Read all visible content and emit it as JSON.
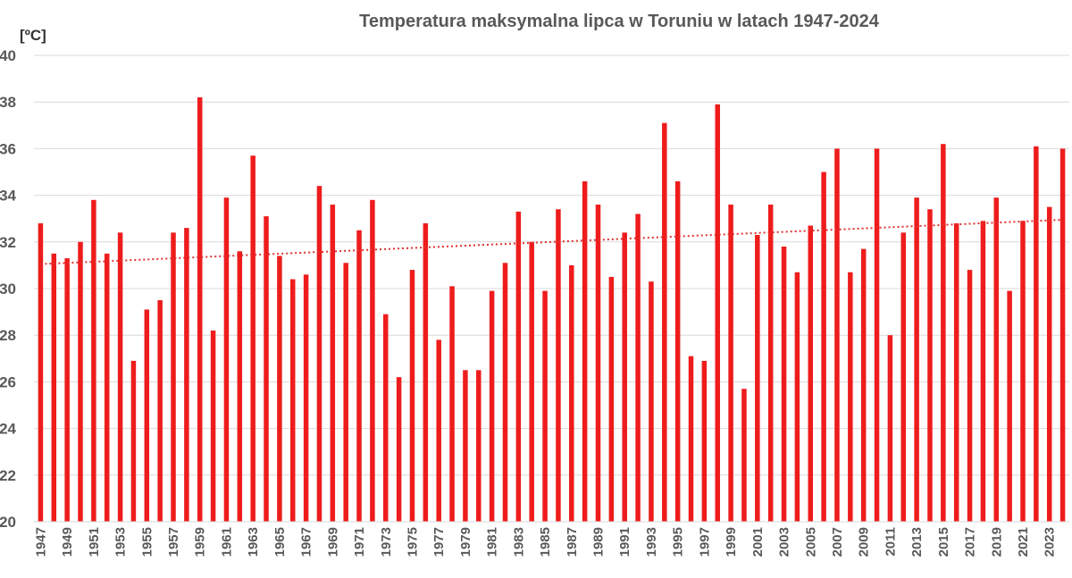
{
  "chart_data": {
    "type": "bar",
    "title": "Temperatura maksymalna lipca w Toruniu w latach 1947-2024",
    "ylabel": "[ºC]",
    "xlabel": "",
    "ylim": [
      20,
      40
    ],
    "yticks": [
      20,
      22,
      24,
      26,
      28,
      30,
      32,
      34,
      36,
      38,
      40
    ],
    "grid": true,
    "legend": "none",
    "bar_color": "#ee1c1c",
    "trendline_color": "#e03030",
    "categories": [
      1947,
      1948,
      1949,
      1950,
      1951,
      1952,
      1953,
      1954,
      1955,
      1956,
      1957,
      1958,
      1959,
      1960,
      1961,
      1962,
      1963,
      1964,
      1965,
      1966,
      1967,
      1968,
      1969,
      1970,
      1971,
      1972,
      1973,
      1974,
      1975,
      1976,
      1977,
      1978,
      1979,
      1980,
      1981,
      1982,
      1983,
      1984,
      1985,
      1986,
      1987,
      1988,
      1989,
      1990,
      1991,
      1992,
      1993,
      1994,
      1995,
      1996,
      1997,
      1998,
      1999,
      2000,
      2001,
      2002,
      2003,
      2004,
      2005,
      2006,
      2007,
      2008,
      2009,
      2010,
      2011,
      2012,
      2013,
      2014,
      2015,
      2016,
      2017,
      2018,
      2019,
      2020,
      2021,
      2022,
      2023,
      2024
    ],
    "xtick_labels": [
      "1947",
      "1949",
      "1951",
      "1953",
      "1955",
      "1957",
      "1959",
      "1961",
      "1963",
      "1965",
      "1967",
      "1969",
      "1971",
      "1973",
      "1975",
      "1977",
      "1979",
      "1981",
      "1983",
      "1985",
      "1987",
      "1989",
      "1991",
      "1993",
      "1995",
      "1997",
      "1999",
      "2001",
      "2003",
      "2005",
      "2007",
      "2009",
      "2011",
      "2013",
      "2015",
      "2017",
      "2019",
      "2021",
      "2023"
    ],
    "values": [
      32.8,
      31.5,
      31.3,
      32.0,
      33.8,
      31.5,
      32.4,
      26.9,
      29.1,
      29.5,
      32.4,
      32.6,
      38.2,
      28.2,
      33.9,
      31.6,
      35.7,
      33.1,
      31.4,
      30.4,
      30.6,
      34.4,
      33.6,
      31.1,
      32.5,
      33.8,
      28.9,
      26.2,
      30.8,
      32.8,
      27.8,
      30.1,
      26.5,
      26.5,
      29.9,
      31.1,
      33.3,
      32.0,
      29.9,
      33.4,
      31.0,
      34.6,
      33.6,
      30.5,
      32.4,
      33.2,
      30.3,
      37.1,
      34.6,
      27.1,
      26.9,
      37.9,
      33.6,
      25.7,
      32.3,
      33.6,
      31.8,
      30.7,
      32.7,
      35.0,
      36.0,
      30.7,
      31.7,
      36.0,
      28.0,
      32.4,
      33.9,
      33.4,
      36.2,
      32.8,
      30.8,
      32.9,
      33.9,
      29.9,
      32.9,
      36.1,
      33.5,
      36.0
    ],
    "trendline": {
      "type": "linear",
      "start": 31.05,
      "end": 32.95
    }
  }
}
